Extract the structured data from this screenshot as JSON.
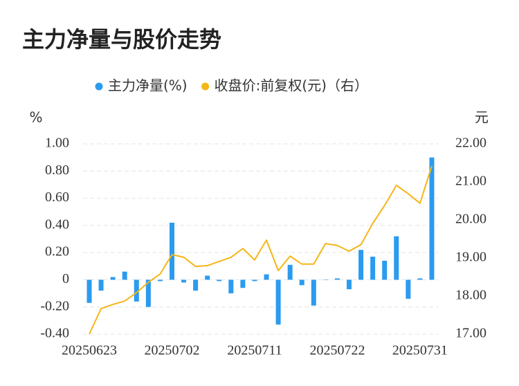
{
  "chart_data": {
    "type": "bar-line",
    "title": "主力净量与股价走势",
    "y_label": "%",
    "y2_label": "元",
    "categories": [
      "20250623",
      null,
      null,
      null,
      null,
      null,
      null,
      "20250702",
      null,
      null,
      null,
      null,
      null,
      null,
      "20250711",
      null,
      null,
      null,
      null,
      null,
      null,
      "20250722",
      null,
      null,
      null,
      null,
      null,
      null,
      "20250731",
      null
    ],
    "series": [
      {
        "name": "主力净量(%)",
        "type": "bar",
        "color": "#2b9bef",
        "values": [
          -0.17,
          -0.08,
          0.02,
          0.06,
          -0.16,
          -0.2,
          -0.01,
          0.42,
          -0.02,
          -0.08,
          0.03,
          -0.01,
          -0.1,
          -0.06,
          -0.01,
          0.04,
          -0.33,
          0.11,
          -0.04,
          -0.19,
          0.0,
          0.01,
          -0.07,
          0.22,
          0.17,
          0.14,
          0.32,
          -0.14,
          0.01,
          0.9
        ]
      },
      {
        "name": "收盘价:前复权(元)（右）",
        "type": "line",
        "axis": "y2",
        "color": "#f4b516",
        "values": [
          17.0,
          17.67,
          17.78,
          17.87,
          18.09,
          18.36,
          18.58,
          19.09,
          19.02,
          18.78,
          18.8,
          18.91,
          19.02,
          19.25,
          18.95,
          19.47,
          18.67,
          19.05,
          18.84,
          18.84,
          19.38,
          19.33,
          19.18,
          19.35,
          19.91,
          20.38,
          20.91,
          20.69,
          20.44,
          21.42
        ]
      }
    ],
    "ylim": [
      -0.4,
      1.0
    ],
    "yticks": [
      {
        "value": -0.4,
        "label": "-0.40"
      },
      {
        "value": -0.2,
        "label": "-0.20"
      },
      0,
      {
        "value": 0.2,
        "label": "0.20"
      },
      {
        "value": 0.4,
        "label": "0.40"
      },
      {
        "value": 0.6,
        "label": "0.60"
      },
      {
        "value": 0.8,
        "label": "0.80"
      },
      {
        "value": 1.0,
        "label": "1.00"
      }
    ],
    "y2lim": [
      17,
      22
    ],
    "y2ticks": [
      {
        "value": 17,
        "label": "17.00"
      },
      {
        "value": 18,
        "label": "18.00"
      },
      {
        "value": 19,
        "label": "19.00"
      },
      {
        "value": 20,
        "label": "20.00"
      },
      {
        "value": 21,
        "label": "21.00"
      },
      {
        "value": 22,
        "label": "22.00"
      }
    ],
    "grid": true
  }
}
